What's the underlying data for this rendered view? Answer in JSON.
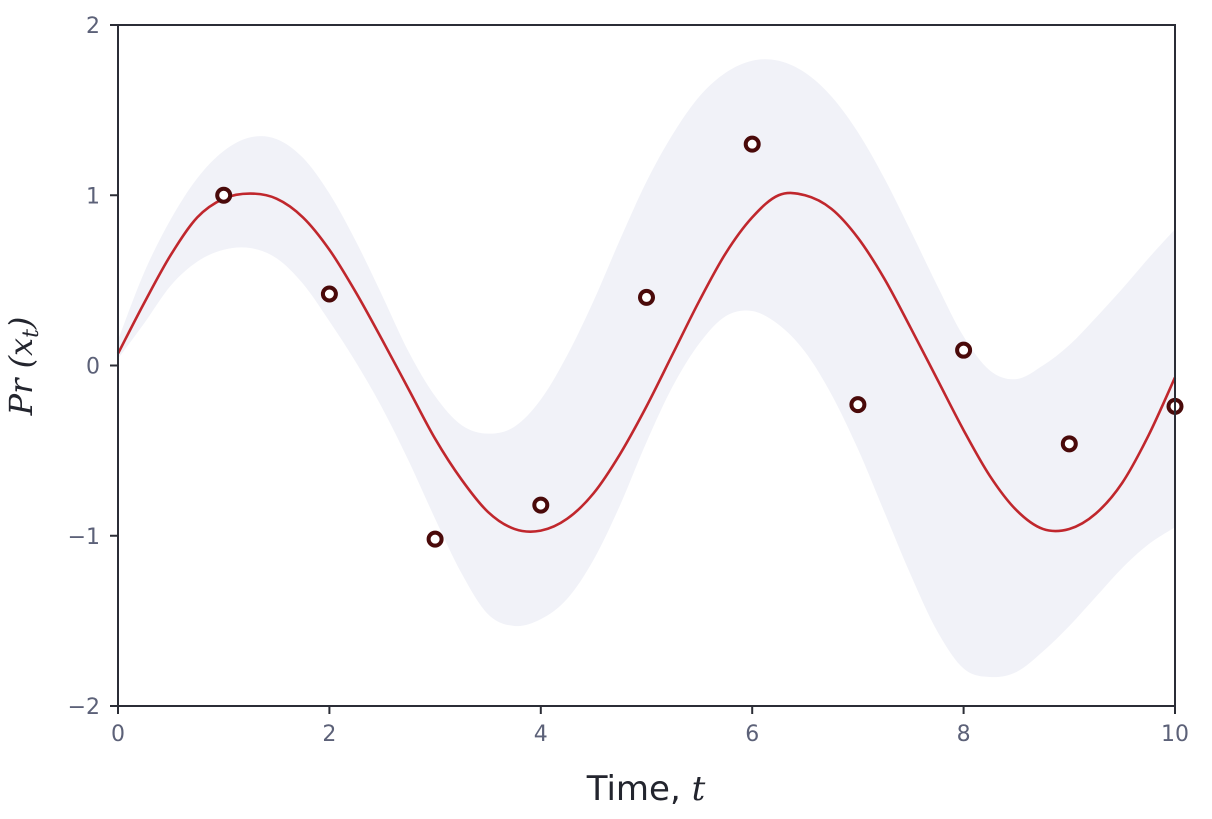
{
  "chart_data": {
    "type": "line",
    "xlabel": "Time, ",
    "xlabel_var": "t",
    "ylabel": "Pr (x",
    "ylabel_sub": "t",
    "ylabel_close": ")",
    "xlim": [
      0,
      10
    ],
    "ylim": [
      -2,
      2
    ],
    "x_ticks": [
      0,
      2,
      4,
      6,
      8,
      10
    ],
    "x_tick_labels": [
      "0",
      "2",
      "4",
      "6",
      "8",
      "10"
    ],
    "y_ticks": [
      -2,
      -1,
      0,
      1,
      2
    ],
    "y_tick_labels": [
      "−2",
      "−1",
      "0",
      "1",
      "2"
    ],
    "grid": false,
    "legend": "none",
    "colors": {
      "mean_line": "#c0272d",
      "band": "#f1f2f8",
      "points": "#4a0a0a",
      "axis": "#2b2d36"
    },
    "mean_curve": {
      "x": [
        0.0,
        0.25,
        0.5,
        0.75,
        1.0,
        1.25,
        1.5,
        1.75,
        2.0,
        2.25,
        2.5,
        2.75,
        3.0,
        3.25,
        3.5,
        3.75,
        4.0,
        4.25,
        4.5,
        4.75,
        5.0,
        5.25,
        5.5,
        5.75,
        6.0,
        6.25,
        6.5,
        6.75,
        7.0,
        7.25,
        7.5,
        7.75,
        8.0,
        8.25,
        8.5,
        8.75,
        9.0,
        9.25,
        9.5,
        9.75,
        10.0
      ],
      "y": [
        0.07,
        0.37,
        0.65,
        0.87,
        0.98,
        1.01,
        0.98,
        0.87,
        0.68,
        0.43,
        0.15,
        -0.14,
        -0.43,
        -0.67,
        -0.86,
        -0.96,
        -0.97,
        -0.9,
        -0.75,
        -0.52,
        -0.24,
        0.07,
        0.38,
        0.66,
        0.87,
        1.0,
        1.0,
        0.92,
        0.75,
        0.51,
        0.22,
        -0.08,
        -0.38,
        -0.65,
        -0.85,
        -0.96,
        -0.96,
        -0.87,
        -0.69,
        -0.41,
        -0.07
      ]
    },
    "band_upper": [
      0.15,
      0.55,
      0.86,
      1.1,
      1.26,
      1.34,
      1.33,
      1.22,
      1.01,
      0.73,
      0.41,
      0.08,
      -0.18,
      -0.35,
      -0.4,
      -0.36,
      -0.2,
      0.06,
      0.38,
      0.74,
      1.08,
      1.36,
      1.58,
      1.72,
      1.79,
      1.79,
      1.72,
      1.58,
      1.37,
      1.1,
      0.79,
      0.47,
      0.17,
      -0.03,
      -0.08,
      0.0,
      0.12,
      0.28,
      0.45,
      0.63,
      0.8
    ],
    "band_lower": [
      0.04,
      0.25,
      0.47,
      0.61,
      0.68,
      0.69,
      0.63,
      0.48,
      0.26,
      0.02,
      -0.25,
      -0.56,
      -0.9,
      -1.22,
      -1.46,
      -1.53,
      -1.49,
      -1.37,
      -1.14,
      -0.82,
      -0.45,
      -0.12,
      0.13,
      0.29,
      0.32,
      0.24,
      0.08,
      -0.17,
      -0.49,
      -0.86,
      -1.23,
      -1.56,
      -1.78,
      -1.83,
      -1.8,
      -1.68,
      -1.53,
      -1.36,
      -1.19,
      -1.05,
      -0.95
    ],
    "points": {
      "x": [
        1,
        2,
        3,
        4,
        5,
        6,
        7,
        8,
        9,
        10
      ],
      "y": [
        1.0,
        0.42,
        -1.02,
        -0.82,
        0.4,
        1.3,
        -0.23,
        0.09,
        -0.46,
        -0.24
      ]
    }
  }
}
